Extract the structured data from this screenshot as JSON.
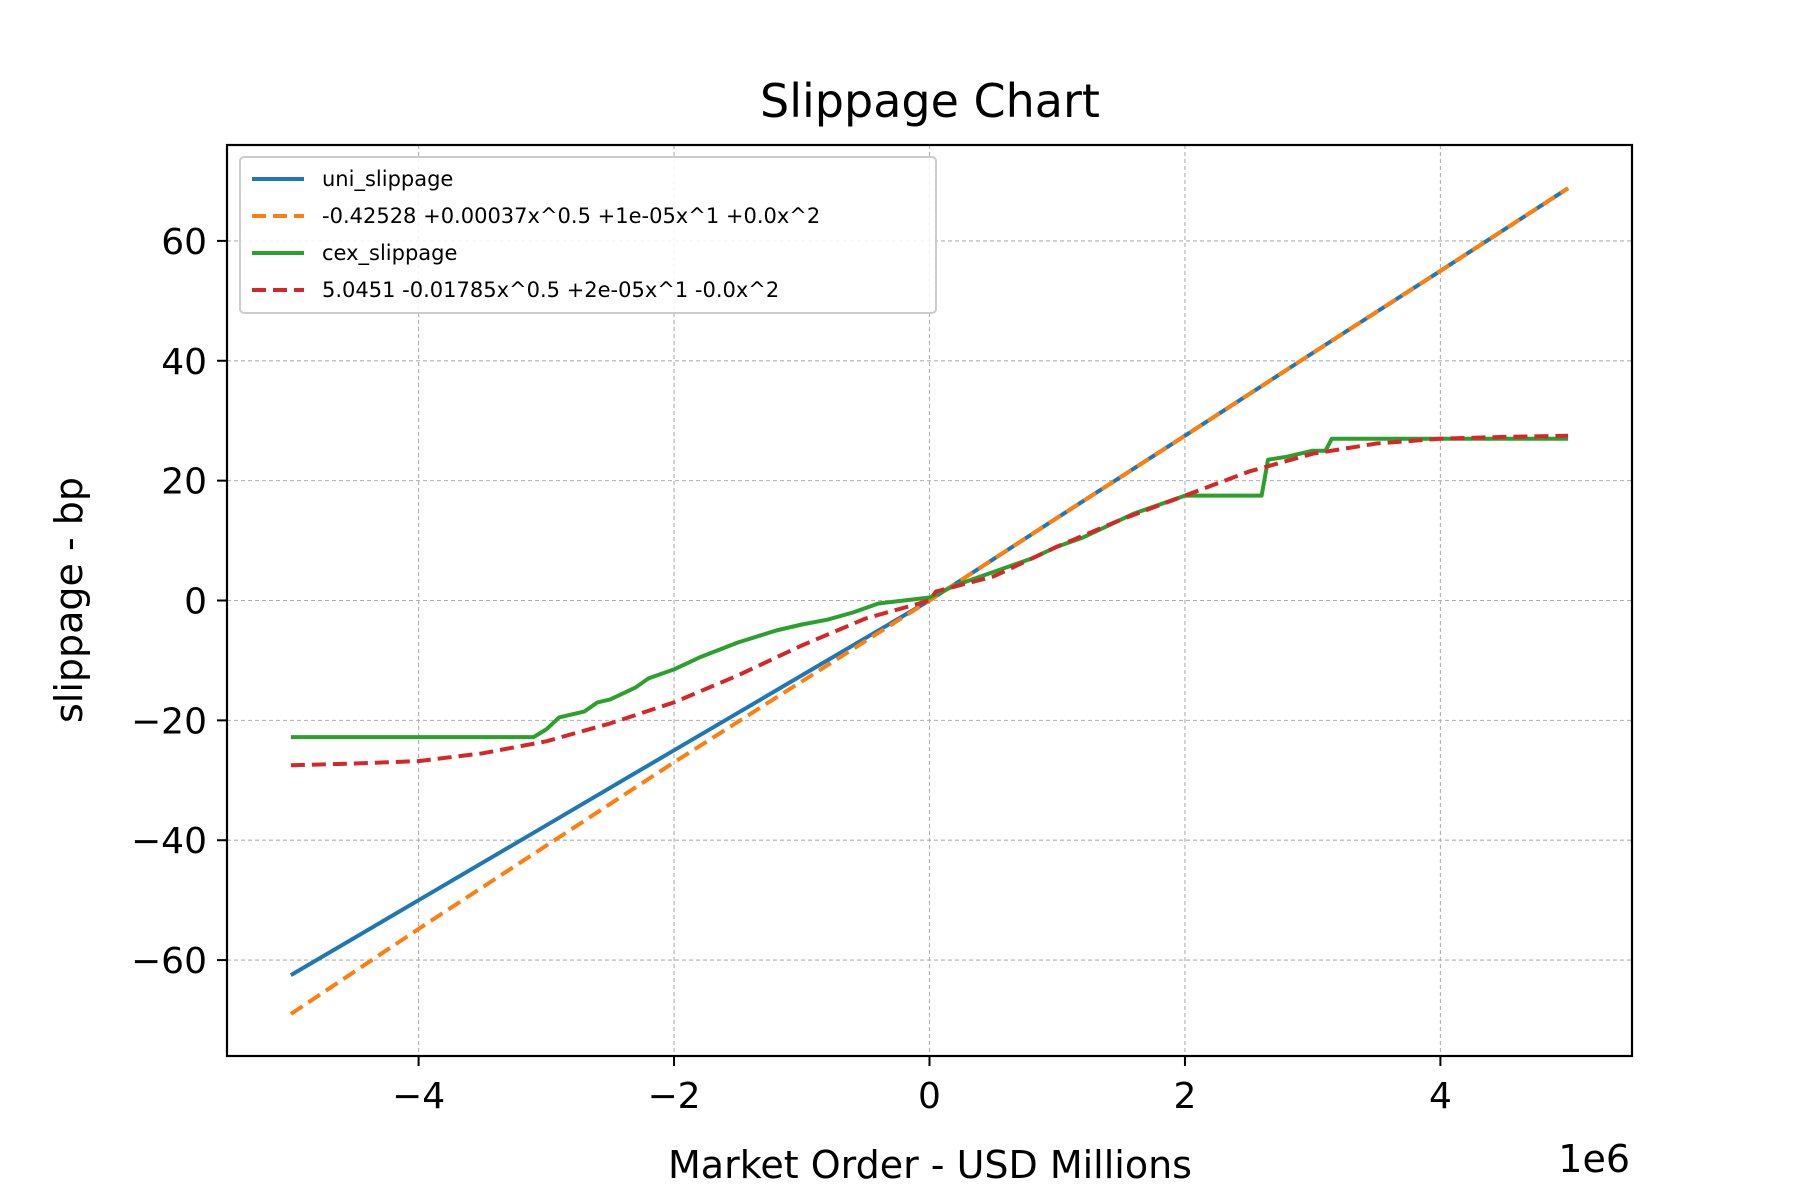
{
  "chart_data": {
    "type": "line",
    "title": "Slippage Chart",
    "xlabel": "Market Order - USD Millions",
    "ylabel": "slippage - bp",
    "x_offset_text": "1e6",
    "xlim": [
      -5500000,
      5500000
    ],
    "ylim": [
      -76,
      76
    ],
    "x_ticks": [
      -4000000,
      -2000000,
      0,
      2000000,
      4000000
    ],
    "x_tick_labels": [
      "−4",
      "−2",
      "0",
      "2",
      "4"
    ],
    "y_ticks": [
      -60,
      -40,
      -20,
      0,
      20,
      40,
      60
    ],
    "y_tick_labels": [
      "−60",
      "−40",
      "−20",
      "0",
      "20",
      "40",
      "60"
    ],
    "grid": true,
    "legend_position": "top-left",
    "series": [
      {
        "name": "uni_slippage",
        "color": "#1f77b4",
        "style": "solid",
        "x": [
          -5000000,
          -4000000,
          -3000000,
          -2000000,
          -1000000,
          0,
          1000000,
          2000000,
          3000000,
          4000000,
          5000000
        ],
        "y": [
          -62.5,
          -50.0,
          -37.5,
          -25.0,
          -12.5,
          0,
          13.8,
          27.5,
          41.3,
          55.0,
          68.8
        ]
      },
      {
        "name": "-0.42528 +0.00037x^0.5 +1e-05x^1 +0.0x^2",
        "color": "#ff7f0e",
        "style": "dashed",
        "x": [
          -5000000,
          -4000000,
          -3000000,
          -2000000,
          -1000000,
          0,
          1000000,
          2000000,
          3000000,
          4000000,
          5000000
        ],
        "y": [
          -69.0,
          -54.8,
          -40.9,
          -27.0,
          -13.5,
          0,
          13.8,
          27.5,
          41.3,
          55.0,
          68.8
        ]
      },
      {
        "name": "cex_slippage",
        "color": "#2ca02c",
        "style": "solid",
        "x": [
          -5000000,
          -4000000,
          -3100000,
          -3000000,
          -2900000,
          -2700000,
          -2600000,
          -2500000,
          -2300000,
          -2200000,
          -2000000,
          -1800000,
          -1500000,
          -1200000,
          -1000000,
          -800000,
          -600000,
          -400000,
          -200000,
          0,
          200000,
          400000,
          600000,
          800000,
          1000000,
          1200000,
          1400000,
          1600000,
          1800000,
          2000000,
          2300000,
          2600000,
          2650000,
          2800000,
          3000000,
          3100000,
          3150000,
          4000000,
          5000000
        ],
        "y": [
          -22.8,
          -22.8,
          -22.8,
          -21.5,
          -19.5,
          -18.5,
          -17.0,
          -16.5,
          -14.5,
          -13.0,
          -11.5,
          -9.5,
          -7.0,
          -5.0,
          -4.0,
          -3.2,
          -2.0,
          -0.5,
          0,
          0.5,
          2.5,
          4.0,
          5.5,
          7.0,
          9.0,
          10.5,
          12.5,
          14.5,
          16.0,
          17.5,
          17.5,
          17.5,
          23.5,
          24.0,
          25.0,
          25.0,
          27.0,
          27.0,
          27.0
        ]
      },
      {
        "name": "5.0451 -0.01785x^0.5 +2e-05x^1 -0.0x^2",
        "color": "#d62728",
        "style": "dashed",
        "x": [
          -5000000,
          -4500000,
          -4000000,
          -3500000,
          -3000000,
          -2500000,
          -2000000,
          -1500000,
          -1000000,
          -500000,
          0,
          50000,
          500000,
          1000000,
          1500000,
          2000000,
          2500000,
          3000000,
          3500000,
          4000000,
          4500000,
          5000000
        ],
        "y": [
          -27.5,
          -27.2,
          -26.8,
          -25.5,
          -23.5,
          -20.5,
          -17.0,
          -12.5,
          -7.5,
          -3.0,
          0,
          1.5,
          4.0,
          9.0,
          13.5,
          17.5,
          21.5,
          24.5,
          26.2,
          27.0,
          27.3,
          27.5
        ]
      }
    ]
  }
}
